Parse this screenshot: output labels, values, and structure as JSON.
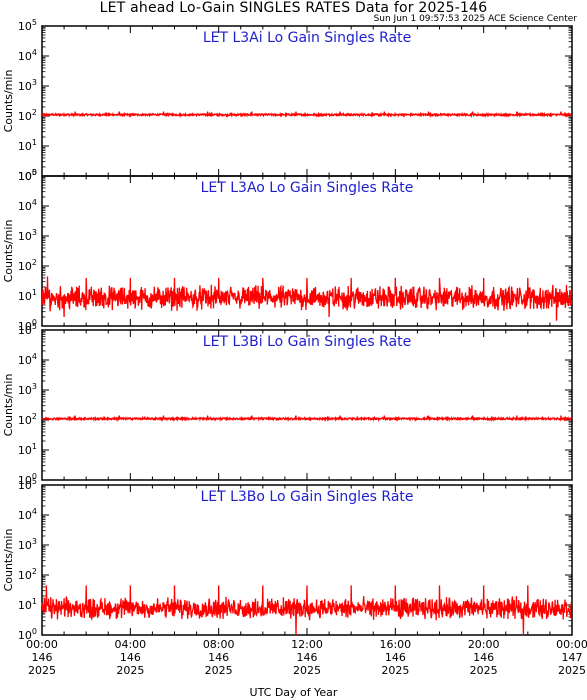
{
  "page": {
    "title": "LET ahead Lo-Gain SINGLES RATES Data for 2025-146",
    "timestamp": "Sun Jun  1 09:57:53 2025 ACE Science Center",
    "xlabel": "UTC Day of Year"
  },
  "colors": {
    "series": "#ff0000",
    "panel_title": "#1f1fd0",
    "axes": "#000000",
    "background": "#ffffff"
  },
  "chart_data": [
    {
      "type": "line",
      "title": "LET L3Ai Lo Gain Singles Rate",
      "ylabel": "Counts/min",
      "yscale": "log",
      "ylim": [
        1,
        100000
      ],
      "xlim": [
        "00:00",
        "24:00"
      ],
      "x_unit": "hours UTC",
      "baseline": 110,
      "noise_range": [
        103,
        118
      ],
      "spikes": [
        {
          "x": 1.5,
          "y": 140
        },
        {
          "x": 3.5,
          "y": 140
        },
        {
          "x": 5.5,
          "y": 140
        },
        {
          "x": 7.5,
          "y": 140
        },
        {
          "x": 9.5,
          "y": 140
        },
        {
          "x": 11.5,
          "y": 140
        },
        {
          "x": 13.5,
          "y": 140
        },
        {
          "x": 15.5,
          "y": 140
        },
        {
          "x": 17.5,
          "y": 140
        },
        {
          "x": 19.5,
          "y": 140
        },
        {
          "x": 21.5,
          "y": 140
        },
        {
          "x": 23.5,
          "y": 140
        }
      ]
    },
    {
      "type": "line",
      "title": "LET L3Ao Lo Gain Singles Rate",
      "ylabel": "Counts/min",
      "yscale": "log",
      "ylim": [
        1,
        100000
      ],
      "xlim": [
        "00:00",
        "24:00"
      ],
      "x_unit": "hours UTC",
      "baseline": 10,
      "noise_range": [
        3,
        25
      ],
      "spikes": [
        {
          "x": 0.25,
          "y": 45
        },
        {
          "x": 1.0,
          "y": 2
        },
        {
          "x": 2.0,
          "y": 40
        },
        {
          "x": 4.0,
          "y": 40
        },
        {
          "x": 6.0,
          "y": 40
        },
        {
          "x": 8.0,
          "y": 40
        },
        {
          "x": 10.0,
          "y": 40
        },
        {
          "x": 12.0,
          "y": 40
        },
        {
          "x": 13.0,
          "y": 2
        },
        {
          "x": 14.0,
          "y": 40
        },
        {
          "x": 16.0,
          "y": 40
        },
        {
          "x": 18.0,
          "y": 40
        },
        {
          "x": 20.0,
          "y": 40
        },
        {
          "x": 22.0,
          "y": 40
        },
        {
          "x": 23.3,
          "y": 1.5
        }
      ]
    },
    {
      "type": "line",
      "title": "LET L3Bi Lo Gain Singles Rate",
      "ylabel": "Counts/min",
      "yscale": "log",
      "ylim": [
        1,
        100000
      ],
      "xlim": [
        "00:00",
        "24:00"
      ],
      "x_unit": "hours UTC",
      "baseline": 110,
      "noise_range": [
        103,
        118
      ],
      "spikes": [
        {
          "x": 1.5,
          "y": 140
        },
        {
          "x": 3.5,
          "y": 140
        },
        {
          "x": 5.5,
          "y": 140
        },
        {
          "x": 7.5,
          "y": 140
        },
        {
          "x": 9.5,
          "y": 140
        },
        {
          "x": 11.5,
          "y": 140
        },
        {
          "x": 13.5,
          "y": 140
        },
        {
          "x": 15.5,
          "y": 140
        },
        {
          "x": 17.5,
          "y": 140
        },
        {
          "x": 19.5,
          "y": 140
        },
        {
          "x": 21.5,
          "y": 140
        },
        {
          "x": 23.5,
          "y": 140
        }
      ]
    },
    {
      "type": "line",
      "title": "LET L3Bo Lo Gain Singles Rate",
      "ylabel": "Counts/min",
      "yscale": "log",
      "ylim": [
        1,
        100000
      ],
      "xlim": [
        "00:00",
        "24:00"
      ],
      "x_unit": "hours UTC",
      "baseline": 8,
      "noise_range": [
        3,
        20
      ],
      "spikes": [
        {
          "x": 0.2,
          "y": 45
        },
        {
          "x": 2.0,
          "y": 45
        },
        {
          "x": 4.0,
          "y": 45
        },
        {
          "x": 6.0,
          "y": 45
        },
        {
          "x": 8.0,
          "y": 45
        },
        {
          "x": 10.0,
          "y": 45
        },
        {
          "x": 11.5,
          "y": 1
        },
        {
          "x": 12.0,
          "y": 45
        },
        {
          "x": 14.0,
          "y": 45
        },
        {
          "x": 16.0,
          "y": 45
        },
        {
          "x": 18.0,
          "y": 45
        },
        {
          "x": 20.0,
          "y": 45
        },
        {
          "x": 21.8,
          "y": 1
        },
        {
          "x": 22.0,
          "y": 45
        }
      ]
    }
  ],
  "x_ticks": [
    {
      "time": "00:00",
      "doy": "146",
      "year": "2025"
    },
    {
      "time": "04:00",
      "doy": "146",
      "year": "2025"
    },
    {
      "time": "08:00",
      "doy": "146",
      "year": "2025"
    },
    {
      "time": "12:00",
      "doy": "146",
      "year": "2025"
    },
    {
      "time": "16:00",
      "doy": "146",
      "year": "2025"
    },
    {
      "time": "20:00",
      "doy": "146",
      "year": "2025"
    },
    {
      "time": "00:00",
      "doy": "147",
      "year": "2025"
    }
  ],
  "y_tick_labels": [
    "10",
    "10",
    "10",
    "10",
    "10",
    "10"
  ],
  "y_tick_exponents": [
    "0",
    "1",
    "2",
    "3",
    "4",
    "5"
  ]
}
